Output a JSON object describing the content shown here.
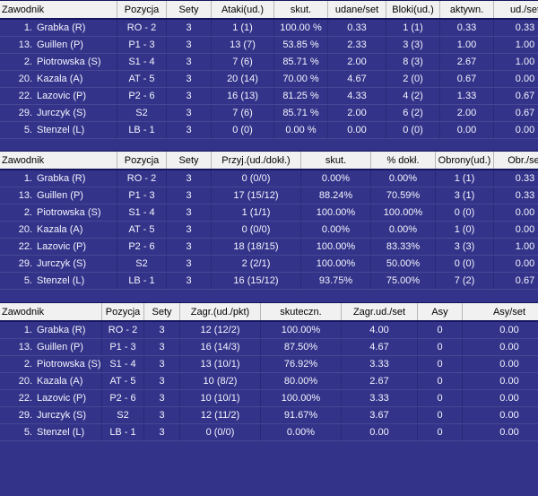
{
  "theme": {
    "page_bg": "#333389",
    "header_bg": "#f1f1f1",
    "header_text": "#000000",
    "row_text": "#f4f4ff",
    "divider_line": "#15155f"
  },
  "tables": [
    {
      "name": "attack-block-stats",
      "columns": [
        "Zawodnik",
        "Pozycja",
        "Sety",
        "Ataki(ud.)",
        "skut.",
        "udane/set",
        "Bloki(ud.)",
        "aktywn.",
        "ud./set"
      ],
      "rows": [
        {
          "no": "1.",
          "name": "Grabka (R)",
          "cells": [
            "RO - 2",
            "3",
            "1 (1)",
            "100.00 %",
            "0.33",
            "1 (1)",
            "0.33",
            "0.33"
          ]
        },
        {
          "no": "13.",
          "name": "Guillen (P)",
          "cells": [
            "P1 - 3",
            "3",
            "13 (7)",
            "53.85 %",
            "2.33",
            "3 (3)",
            "1.00",
            "1.00"
          ]
        },
        {
          "no": "2.",
          "name": "Piotrowska (S)",
          "cells": [
            "S1 - 4",
            "3",
            "7 (6)",
            "85.71 %",
            "2.00",
            "8 (3)",
            "2.67",
            "1.00"
          ]
        },
        {
          "no": "20.",
          "name": "Kazala (A)",
          "cells": [
            "AT - 5",
            "3",
            "20 (14)",
            "70.00 %",
            "4.67",
            "2 (0)",
            "0.67",
            "0.00"
          ]
        },
        {
          "no": "22.",
          "name": "Lazovic (P)",
          "cells": [
            "P2 - 6",
            "3",
            "16 (13)",
            "81.25 %",
            "4.33",
            "4 (2)",
            "1.33",
            "0.67"
          ]
        },
        {
          "no": "29.",
          "name": "Jurczyk (S)",
          "cells": [
            "S2",
            "3",
            "7 (6)",
            "85.71 %",
            "2.00",
            "6 (2)",
            "2.00",
            "0.67"
          ]
        },
        {
          "no": "5.",
          "name": "Stenzel (L)",
          "cells": [
            "LB - 1",
            "3",
            "0 (0)",
            "0.00 %",
            "0.00",
            "0 (0)",
            "0.00",
            "0.00"
          ]
        }
      ]
    },
    {
      "name": "reception-defense-stats",
      "columns": [
        "Zawodnik",
        "Pozycja",
        "Sety",
        "Przyj.(ud./dokł.)",
        "skut.",
        "% dokł.",
        "Obrony(ud.)",
        "Obr./set"
      ],
      "rows": [
        {
          "no": "1.",
          "name": "Grabka (R)",
          "cells": [
            "RO - 2",
            "3",
            "0 (0/0)",
            "0.00%",
            "0.00%",
            "1 (1)",
            "0.33"
          ]
        },
        {
          "no": "13.",
          "name": "Guillen (P)",
          "cells": [
            "P1 - 3",
            "3",
            "17 (15/12)",
            "88.24%",
            "70.59%",
            "3 (1)",
            "0.33"
          ]
        },
        {
          "no": "2.",
          "name": "Piotrowska (S)",
          "cells": [
            "S1 - 4",
            "3",
            "1 (1/1)",
            "100.00%",
            "100.00%",
            "0 (0)",
            "0.00"
          ]
        },
        {
          "no": "20.",
          "name": "Kazala (A)",
          "cells": [
            "AT - 5",
            "3",
            "0 (0/0)",
            "0.00%",
            "0.00%",
            "1 (0)",
            "0.00"
          ]
        },
        {
          "no": "22.",
          "name": "Lazovic (P)",
          "cells": [
            "P2 - 6",
            "3",
            "18 (18/15)",
            "100.00%",
            "83.33%",
            "3 (3)",
            "1.00"
          ]
        },
        {
          "no": "29.",
          "name": "Jurczyk (S)",
          "cells": [
            "S2",
            "3",
            "2 (2/1)",
            "100.00%",
            "50.00%",
            "0 (0)",
            "0.00"
          ]
        },
        {
          "no": "5.",
          "name": "Stenzel (L)",
          "cells": [
            "LB - 1",
            "3",
            "16 (15/12)",
            "93.75%",
            "75.00%",
            "7 (2)",
            "0.67"
          ]
        }
      ]
    },
    {
      "name": "serve-stats",
      "columns": [
        "Zawodnik",
        "Pozycja",
        "Sety",
        "Zagr.(ud./pkt)",
        "skuteczn.",
        "Zagr.ud./set",
        "Asy",
        "Asy/set"
      ],
      "rows": [
        {
          "no": "1.",
          "name": "Grabka (R)",
          "cells": [
            "RO - 2",
            "3",
            "12 (12/2)",
            "100.00%",
            "4.00",
            "0",
            "0.00"
          ]
        },
        {
          "no": "13.",
          "name": "Guillen (P)",
          "cells": [
            "P1 - 3",
            "3",
            "16 (14/3)",
            "87.50%",
            "4.67",
            "0",
            "0.00"
          ]
        },
        {
          "no": "2.",
          "name": "Piotrowska (S)",
          "cells": [
            "S1 - 4",
            "3",
            "13 (10/1)",
            "76.92%",
            "3.33",
            "0",
            "0.00"
          ]
        },
        {
          "no": "20.",
          "name": "Kazala (A)",
          "cells": [
            "AT - 5",
            "3",
            "10 (8/2)",
            "80.00%",
            "2.67",
            "0",
            "0.00"
          ]
        },
        {
          "no": "22.",
          "name": "Lazovic (P)",
          "cells": [
            "P2 - 6",
            "3",
            "10 (10/1)",
            "100.00%",
            "3.33",
            "0",
            "0.00"
          ]
        },
        {
          "no": "29.",
          "name": "Jurczyk (S)",
          "cells": [
            "S2",
            "3",
            "12 (11/2)",
            "91.67%",
            "3.67",
            "0",
            "0.00"
          ]
        },
        {
          "no": "5.",
          "name": "Stenzel (L)",
          "cells": [
            "LB - 1",
            "3",
            "0 (0/0)",
            "0.00%",
            "0.00",
            "0",
            "0.00"
          ]
        }
      ]
    }
  ]
}
